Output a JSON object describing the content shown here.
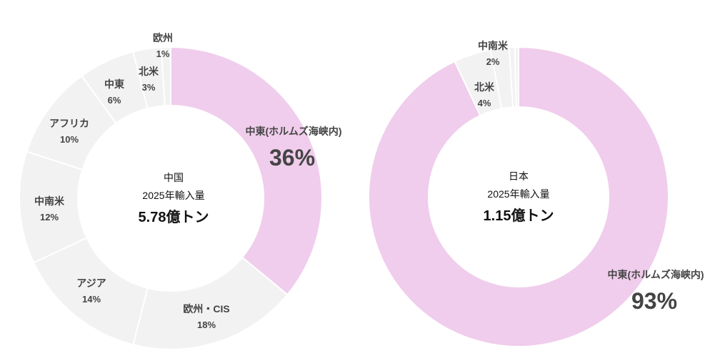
{
  "chart_data": [
    {
      "type": "pie",
      "center": {
        "country": "中国",
        "caption": "2025年輸入量",
        "total": "5.78億トン"
      },
      "start_angle_deg": 0,
      "slices": [
        {
          "label": "中東(ホルムズ海峡内)",
          "value": 36,
          "display": "36%",
          "highlight": true
        },
        {
          "label": "欧州・CIS",
          "value": 18,
          "display": "18%"
        },
        {
          "label": "アジア",
          "value": 14,
          "display": "14%"
        },
        {
          "label": "中南米",
          "value": 12,
          "display": "12%"
        },
        {
          "label": "アフリカ",
          "value": 10,
          "display": "10%"
        },
        {
          "label": "中東",
          "value": 6,
          "display": "6%"
        },
        {
          "label": "北米",
          "value": 3,
          "display": "3%"
        },
        {
          "label": "欧州",
          "value": 1,
          "display": "1%"
        }
      ]
    },
    {
      "type": "pie",
      "center": {
        "country": "日本",
        "caption": "2025年輸入量",
        "total": "1.15億トン"
      },
      "start_angle_deg": 0,
      "slices": [
        {
          "label": "中東(ホルムズ海峡内)",
          "value": 93,
          "display": "93%",
          "highlight": true
        },
        {
          "label": "北米",
          "value": 4,
          "display": "4%"
        },
        {
          "label": "中南米",
          "value": 2,
          "display": "2%"
        },
        {
          "label": "",
          "value": 0.6,
          "display": ""
        },
        {
          "label": "",
          "value": 0.4,
          "display": ""
        }
      ]
    }
  ],
  "colors": {
    "highlight": "#f0cdec",
    "other": "#f2f2f2",
    "separator": "#ffffff",
    "label": "#444444",
    "center_text": "#111111"
  }
}
